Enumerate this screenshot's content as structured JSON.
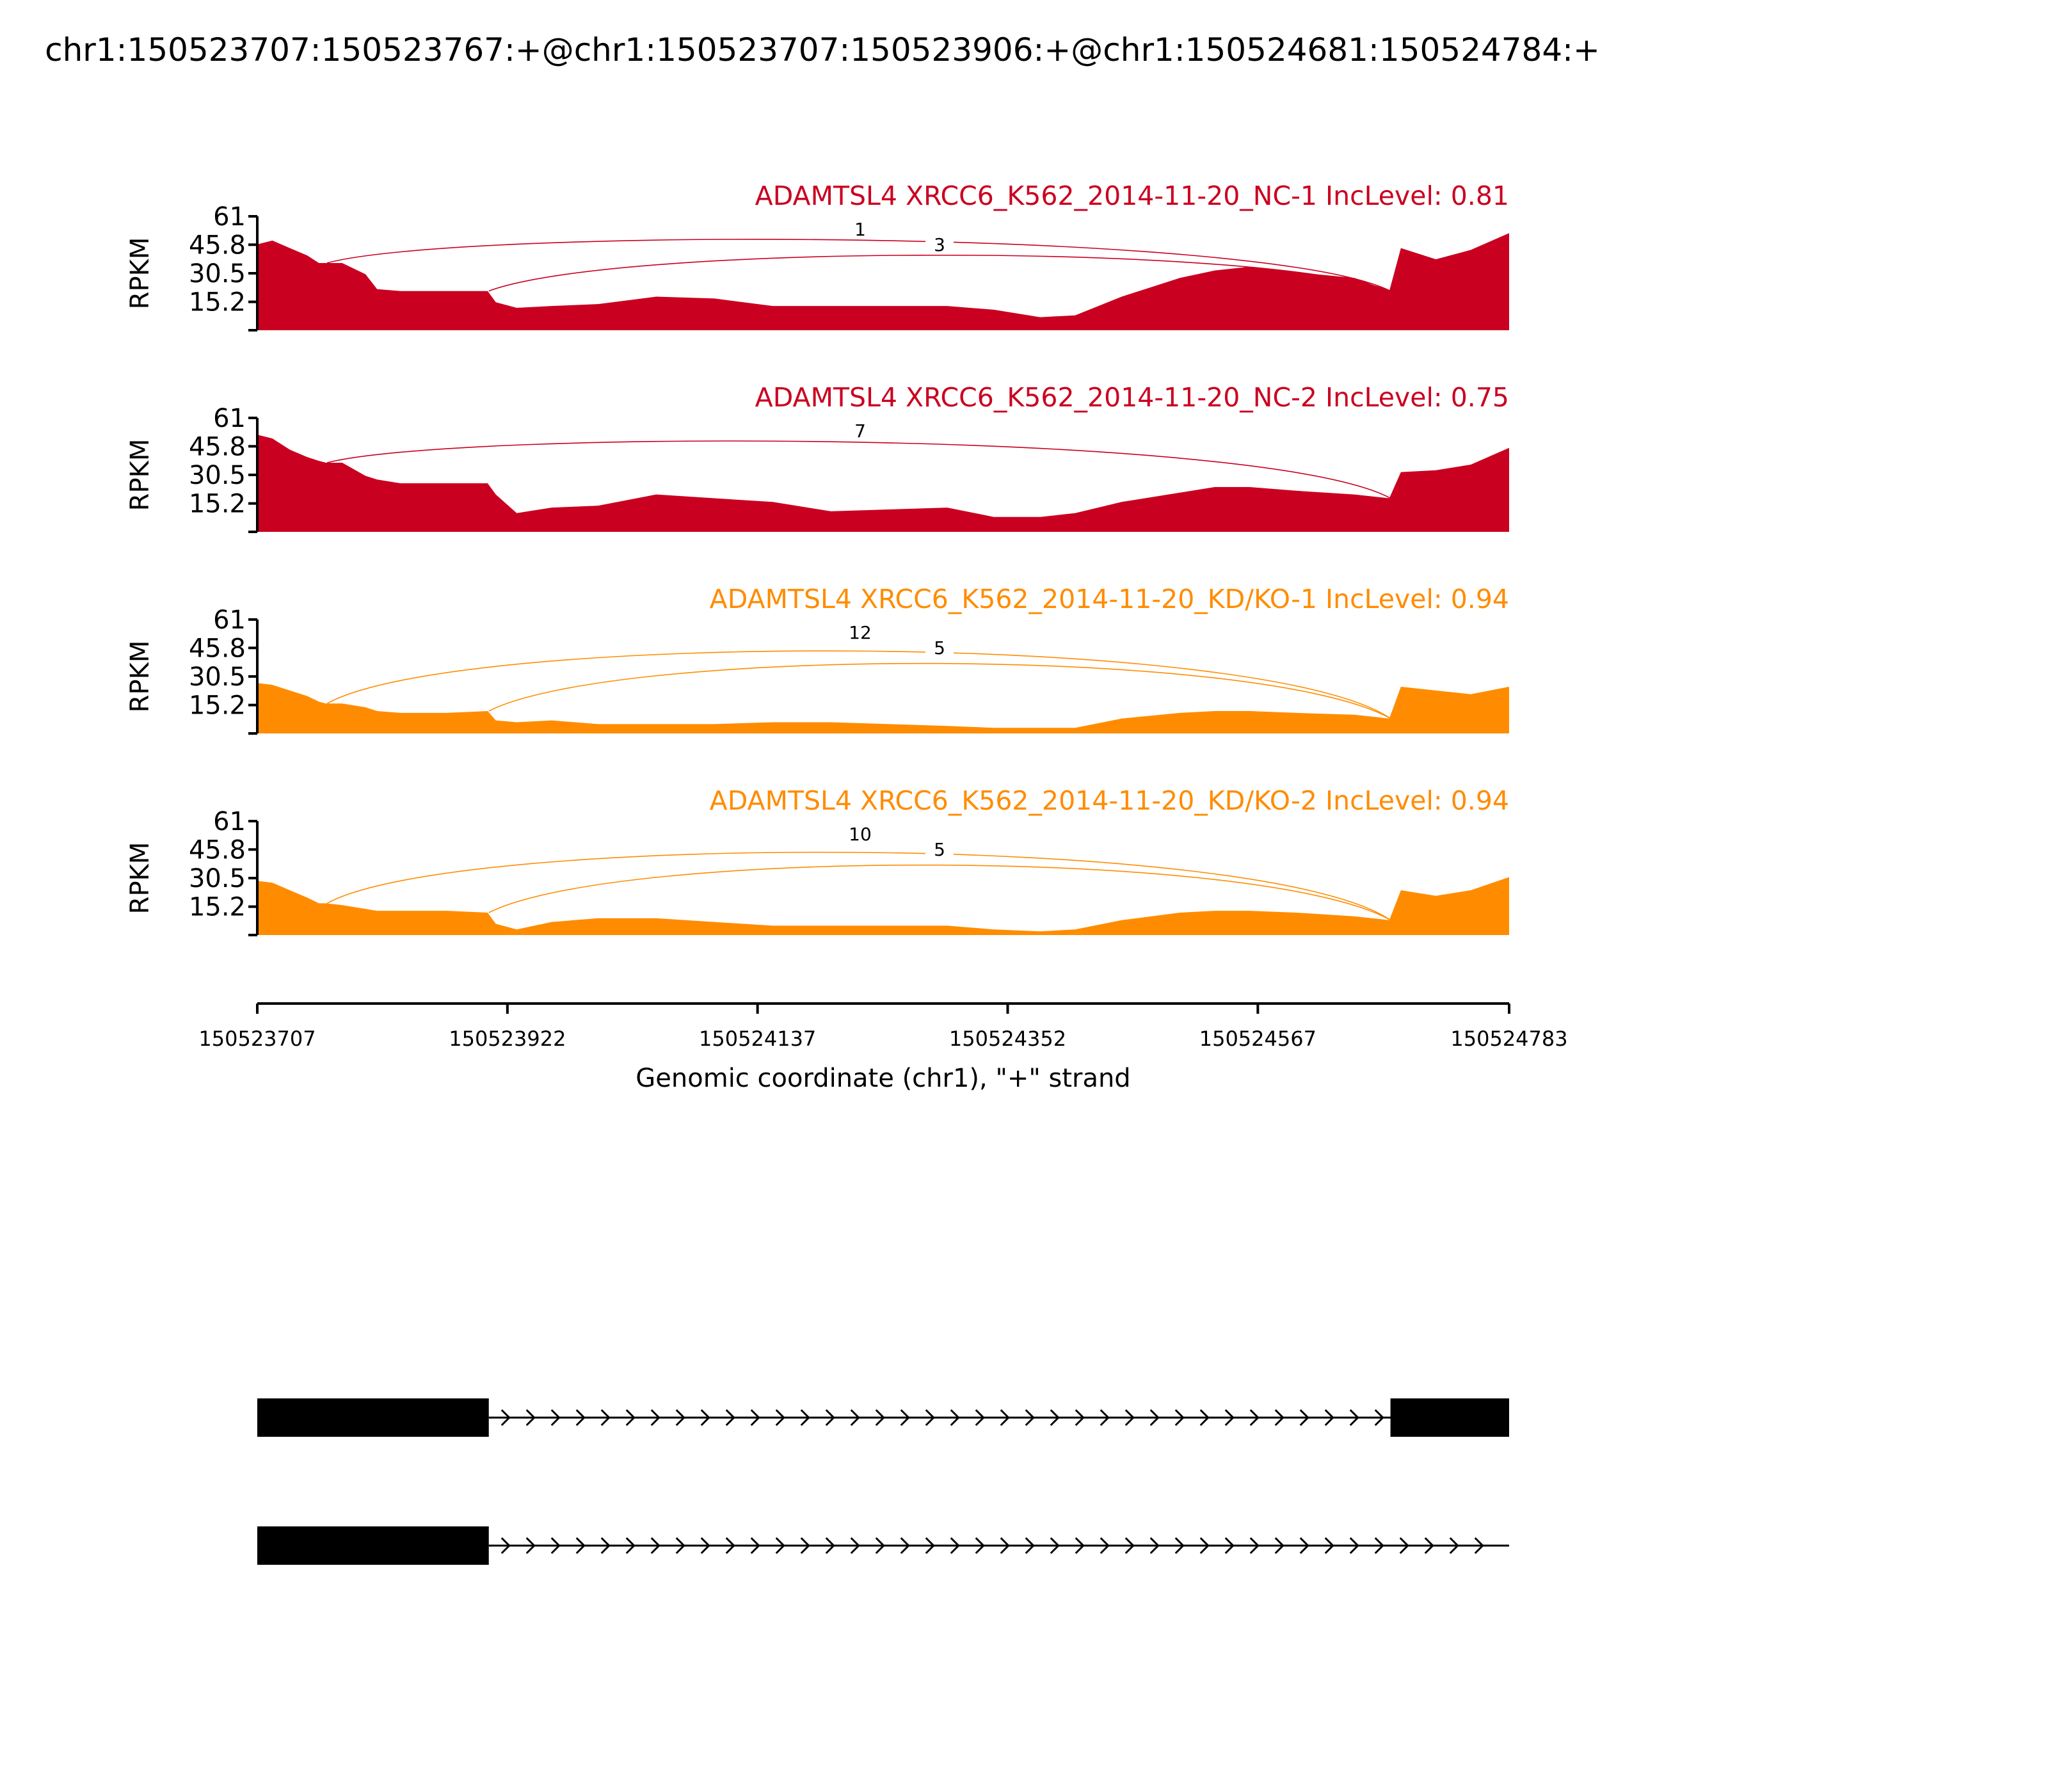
{
  "chart_data": {
    "type": "area",
    "title": "chr1:150523707:150523767:+@chr1:150523707:150523906:+@chr1:150524681:150524784:+",
    "xlabel": "Genomic coordinate (chr1), \"+\" strand",
    "ylabel": "RPKM",
    "xlim": [
      150523707,
      150524783
    ],
    "ylim": [
      0,
      61
    ],
    "yticks": [
      "15.2",
      "30.5",
      "45.8",
      "61"
    ],
    "xticks": [
      "150523707",
      "150523922",
      "150524137",
      "150524352",
      "150524567",
      "150524783"
    ],
    "legend": "none",
    "grid": false,
    "profile_x": [
      150523707,
      150523720,
      150523735,
      150523750,
      150523760,
      150523766,
      150523780,
      150523800,
      150523810,
      150523830,
      150523870,
      150523905,
      150523912,
      150523930,
      150523960,
      150524000,
      150524050,
      150524100,
      150524150,
      150524200,
      150524250,
      150524300,
      150524340,
      150524380,
      150524410,
      150524450,
      150524500,
      150524530,
      150524560,
      150524600,
      150524650,
      150524680,
      150524690,
      150524720,
      150524750,
      150524783
    ],
    "series": [
      {
        "name": "ADAMTSL4 XRCC6_K562_2014-11-20_NC-1 IncLevel: 0.81",
        "color": "#CA0020",
        "values": [
          46,
          48,
          44,
          40,
          36,
          36,
          36,
          30,
          22,
          21,
          21,
          21,
          15,
          12,
          13,
          14,
          18,
          17,
          13,
          13,
          13,
          13,
          11,
          7,
          8,
          18,
          28,
          32,
          34,
          31,
          28,
          21,
          44,
          38,
          43,
          52
        ],
        "junctions": [
          {
            "label": "1",
            "from": 150523767,
            "to": 150524681
          },
          {
            "label": "3",
            "from": 150523906,
            "to": 150524681
          }
        ]
      },
      {
        "name": "ADAMTSL4 XRCC6_K562_2014-11-20_NC-2 IncLevel: 0.75",
        "color": "#CA0020",
        "values": [
          52,
          50,
          44,
          40,
          38,
          37,
          37,
          30,
          28,
          26,
          26,
          26,
          20,
          10,
          13,
          14,
          20,
          18,
          16,
          11,
          12,
          13,
          8,
          8,
          10,
          16,
          21,
          24,
          24,
          22,
          20,
          18,
          32,
          33,
          36,
          45
        ],
        "junctions": [
          {
            "label": "7",
            "from": 150523767,
            "to": 150524681
          }
        ]
      },
      {
        "name": "ADAMTSL4 XRCC6_K562_2014-11-20_KD/KO-1 IncLevel: 0.94",
        "color": "#FF8C00",
        "values": [
          27,
          26,
          23,
          20,
          17,
          16,
          16,
          14,
          12,
          11,
          11,
          12,
          7,
          6,
          7,
          5,
          5,
          5,
          6,
          6,
          5,
          4,
          3,
          3,
          3,
          8,
          11,
          12,
          12,
          11,
          10,
          8,
          25,
          23,
          21,
          25
        ],
        "junctions": [
          {
            "label": "12",
            "from": 150523767,
            "to": 150524681
          },
          {
            "label": "5",
            "from": 150523906,
            "to": 150524681
          }
        ]
      },
      {
        "name": "ADAMTSL4 XRCC6_K562_2014-11-20_KD/KO-2 IncLevel: 0.94",
        "color": "#FF8C00",
        "values": [
          29,
          28,
          24,
          20,
          17,
          17,
          16,
          14,
          13,
          13,
          13,
          12,
          6,
          3,
          7,
          9,
          9,
          7,
          5,
          5,
          5,
          5,
          3,
          2,
          3,
          8,
          12,
          13,
          13,
          12,
          10,
          8,
          24,
          21,
          24,
          31
        ],
        "junctions": [
          {
            "label": "10",
            "from": 150523767,
            "to": 150524681
          },
          {
            "label": "5",
            "from": 150523906,
            "to": 150524681
          }
        ]
      }
    ],
    "transcripts": [
      {
        "exons": [
          [
            150523707,
            150523906
          ],
          [
            150524681,
            150524784
          ]
        ]
      },
      {
        "exons": [
          [
            150523707,
            150523906
          ]
        ]
      }
    ]
  }
}
